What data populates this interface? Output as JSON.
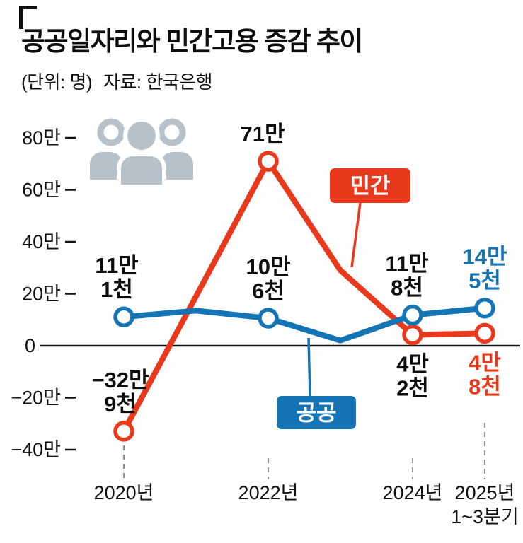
{
  "header": {
    "title": "공공일자리와 민간고용 증감 추이",
    "unit": "(단위: 명)",
    "source": "자료: 한국은행"
  },
  "colors": {
    "private": "#e8391d",
    "public": "#1474b4",
    "axis": "#111111",
    "tick_dash": "#8f8f8f",
    "icon_gray": "#b7c1c9",
    "label_black": "#0d0d0d",
    "legend_text": "#ffffff"
  },
  "chart_data": {
    "type": "line",
    "title": "공공일자리와 민간고용 증감 추이",
    "value_unit": "만 명",
    "xlabel": "",
    "ylabel": "",
    "ylim": [
      -45,
      85
    ],
    "grid": false,
    "x_years": [
      2020,
      2021,
      2022,
      2023,
      2024,
      2025
    ],
    "series": [
      {
        "name": "민간",
        "key": "private",
        "values": [
          -32.9,
          19,
          71,
          29,
          4.2,
          4.8
        ],
        "estimated": [
          false,
          true,
          false,
          true,
          false,
          false
        ]
      },
      {
        "name": "공공",
        "key": "public",
        "values": [
          11.1,
          13.5,
          10.6,
          2,
          11.8,
          14.5
        ],
        "estimated": [
          false,
          true,
          false,
          true,
          false,
          false
        ]
      }
    ],
    "marker_years": [
      2020,
      2022,
      2024,
      2025
    ],
    "y_ticks": [
      {
        "v": 80,
        "label": "80만"
      },
      {
        "v": 60,
        "label": "60만"
      },
      {
        "v": 40,
        "label": "40만"
      },
      {
        "v": 20,
        "label": "20만"
      },
      {
        "v": 0,
        "label": "0"
      },
      {
        "v": -20,
        "label": "−20만"
      },
      {
        "v": -40,
        "label": "−40만"
      }
    ],
    "x_ticks": [
      {
        "year": 2020,
        "label": "2020년"
      },
      {
        "year": 2022,
        "label": "2022년"
      },
      {
        "year": 2024,
        "label": "2024년"
      },
      {
        "year": 2025,
        "label": "2025년",
        "label2": "1~3분기"
      }
    ],
    "point_labels": [
      {
        "year": 2020,
        "series": "public",
        "lines": [
          "11만",
          "1천"
        ],
        "pos": "above",
        "color": "#0d0d0d",
        "dx": -10
      },
      {
        "year": 2022,
        "series": "private",
        "lines": [
          "71만"
        ],
        "pos": "above",
        "color": "#0d0d0d",
        "dx": -8
      },
      {
        "year": 2022,
        "series": "public",
        "lines": [
          "10만",
          "6천"
        ],
        "pos": "above",
        "color": "#0d0d0d",
        "dx": 0
      },
      {
        "year": 2024,
        "series": "public",
        "lines": [
          "11만",
          "8천"
        ],
        "pos": "above",
        "color": "#0d0d0d",
        "dx": -8
      },
      {
        "year": 2025,
        "series": "public",
        "lines": [
          "14만",
          "5천"
        ],
        "pos": "above",
        "color": "#1474b4",
        "dx": 0
      },
      {
        "year": 2020,
        "series": "private",
        "lines": [
          "−32만",
          "9천"
        ],
        "pos": "above",
        "color": "#0d0d0d",
        "dx": -5
      },
      {
        "year": 2024,
        "series": "private",
        "lines": [
          "4만",
          "2천"
        ],
        "pos": "below",
        "color": "#0d0d0d",
        "dx": 0
      },
      {
        "year": 2025,
        "series": "private",
        "lines": [
          "4만",
          "8천"
        ],
        "pos": "below",
        "color": "#e8391d",
        "dx": 0
      }
    ],
    "legend": [
      {
        "label": "민간",
        "key": "private",
        "position": "right-of-peak-callout"
      },
      {
        "label": "공공",
        "key": "public",
        "position": "below-line-callout"
      }
    ]
  }
}
